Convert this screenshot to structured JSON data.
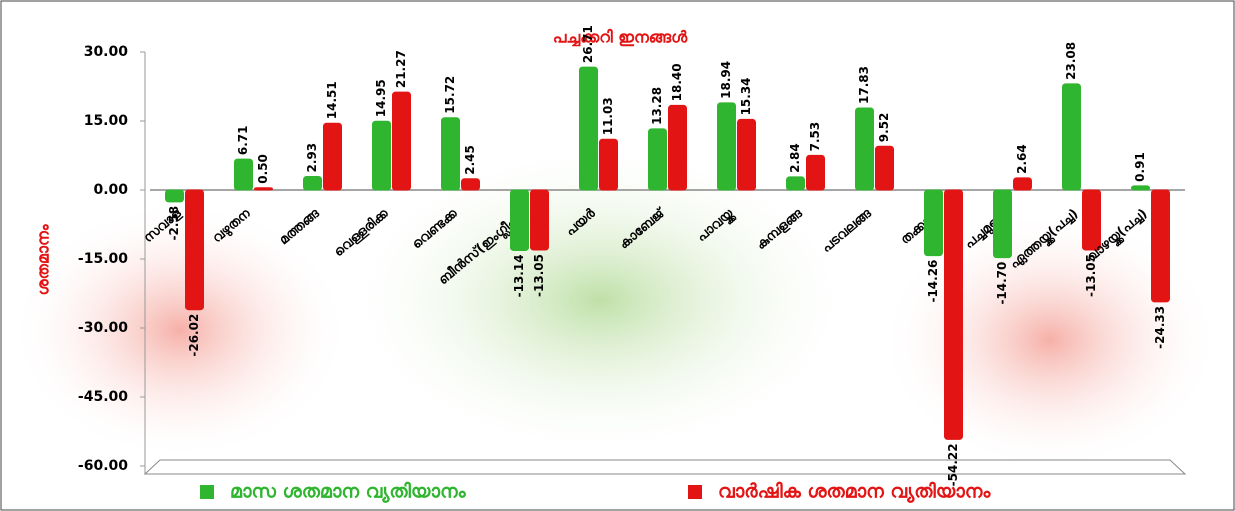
{
  "chart_data": {
    "type": "bar",
    "title": "പച്ചക്കറി ഇനങ്ങൾ",
    "y_label": "ശതമാനം",
    "categories": [
      "സവാള",
      "വഴുതന",
      "മത്തങ്ങ",
      "വെള്ളരിക്ക",
      "വെണ്ടക്ക",
      "ബീൻസ്(ഇംഗ്ലീഷ്)",
      "പയർ",
      "കാബേജ്",
      "പാവയ്ക്ക",
      "കുമ്പളങ്ങ",
      "പടവലങ്ങ",
      "തക്കാളി",
      "പച്ചമുളക്",
      "ഏത്തയ്ക്ക(പച്ച)",
      "വാഴയ്ക്ക(പച്ച)"
    ],
    "series": [
      {
        "name": "മാസ ശതമാന വ്യതിയാനം",
        "color": "#2fb52f",
        "values": [
          -2.58,
          6.71,
          2.93,
          14.95,
          15.72,
          -13.14,
          26.71,
          13.28,
          18.94,
          2.84,
          17.83,
          -14.26,
          -14.7,
          23.08,
          0.91
        ],
        "value_labels": [
          "-2.58",
          "6.71",
          "2.93",
          "14.95",
          "15.72",
          "-13.14",
          "26.71",
          "13.28",
          "18.94",
          "2.84",
          "17.83",
          "-14.26",
          "-14.70",
          "23.08",
          "0.91"
        ]
      },
      {
        "name": "വാർഷിക ശതമാന വ്യതിയാനം",
        "color": "#e31414",
        "values": [
          -26.02,
          0.5,
          14.51,
          21.27,
          2.45,
          -13.05,
          11.03,
          18.4,
          15.34,
          7.53,
          9.52,
          -54.22,
          2.64,
          -13.05,
          -24.33
        ],
        "value_labels": [
          "-26.02",
          "0.50",
          "14.51",
          "21.27",
          "2.45",
          "-13.05",
          "11.03",
          "18.40",
          "15.34",
          "7.53",
          "9.52",
          "-54.22",
          "2.64",
          "-13.05",
          "-24.33"
        ]
      }
    ],
    "ylim": [
      -60,
      30
    ],
    "yticks": [
      {
        "value": -60,
        "label": "-60.00"
      },
      {
        "value": -45,
        "label": "-45.00"
      },
      {
        "value": -30,
        "label": "-30.00"
      },
      {
        "value": -15,
        "label": "-15.00"
      },
      {
        "value": 0,
        "label": "0.00"
      },
      {
        "value": 15,
        "label": "15.00"
      },
      {
        "value": 30,
        "label": "30.00"
      }
    ]
  }
}
